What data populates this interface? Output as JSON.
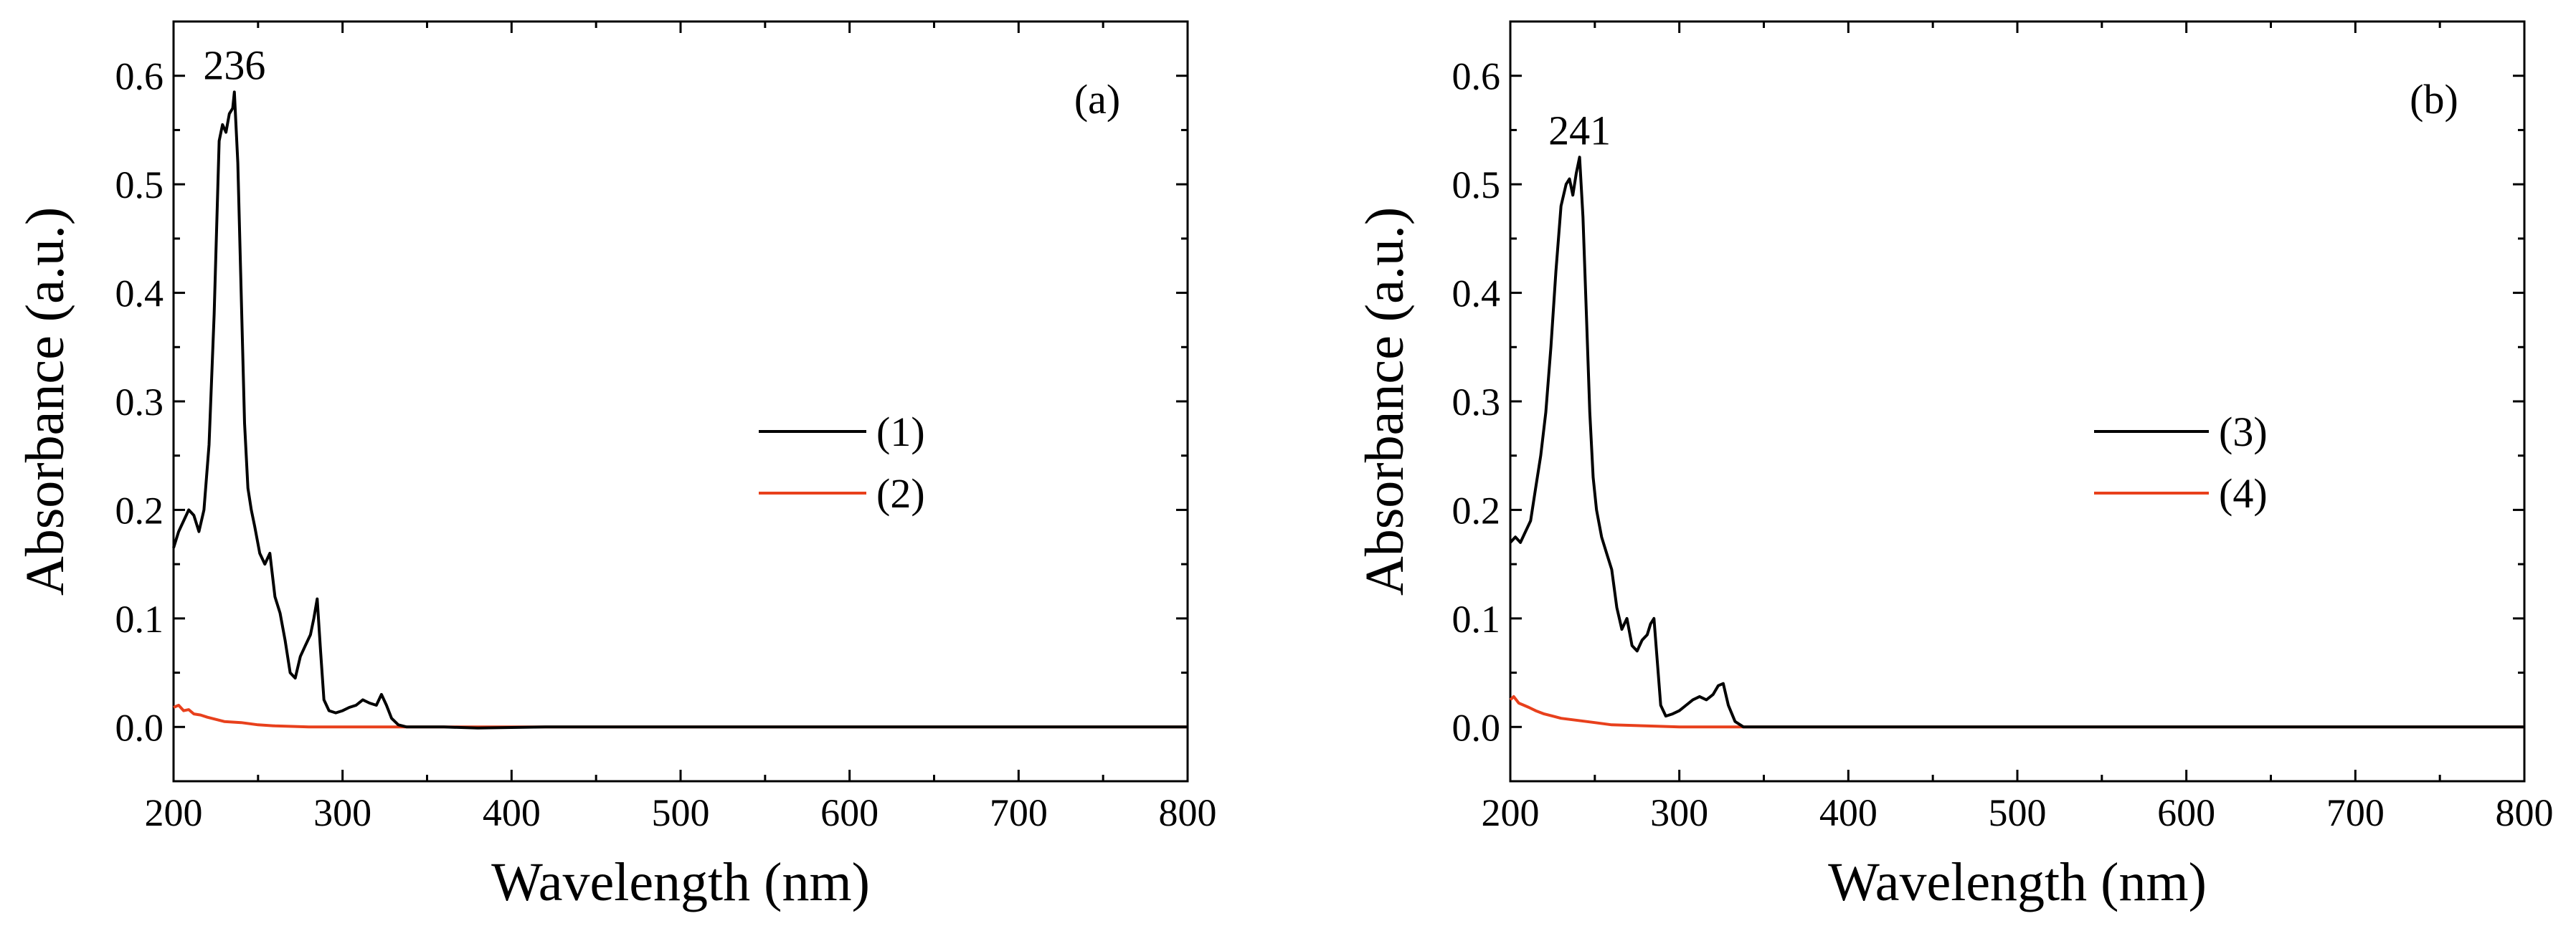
{
  "chart_data": [
    {
      "type": "line",
      "panel_label": "(a)",
      "xlabel": "Wavelength (nm)",
      "ylabel": "Absorbance (a.u.)",
      "xlim": [
        200,
        800
      ],
      "ylim": [
        -0.05,
        0.65
      ],
      "xticks": [
        200,
        300,
        400,
        500,
        600,
        700,
        800
      ],
      "xtick_labels": [
        "200",
        "300",
        "400",
        "500",
        "600",
        "700",
        "800"
      ],
      "yticks": [
        0.0,
        0.1,
        0.2,
        0.3,
        0.4,
        0.5,
        0.6
      ],
      "ytick_labels": [
        "0.0",
        "0.1",
        "0.2",
        "0.3",
        "0.4",
        "0.5",
        "0.6"
      ],
      "legend_position": "center-right",
      "annotations": [
        {
          "text": "236",
          "x": 236,
          "y": 0.585
        }
      ],
      "series": [
        {
          "name": "(1)",
          "color": "#000000",
          "x": [
            200,
            203,
            206,
            209,
            212,
            215,
            218,
            221,
            224,
            227,
            229,
            231,
            233,
            235,
            236,
            238,
            240,
            242,
            244,
            246,
            248,
            251,
            254,
            257,
            260,
            263,
            266,
            269,
            272,
            275,
            278,
            281,
            283,
            285,
            287,
            289,
            292,
            296,
            300,
            304,
            308,
            312,
            316,
            320,
            323,
            326,
            329,
            333,
            338,
            345,
            360,
            380,
            420,
            500,
            600,
            700,
            800
          ],
          "values": [
            0.165,
            0.18,
            0.19,
            0.2,
            0.195,
            0.18,
            0.2,
            0.26,
            0.38,
            0.54,
            0.555,
            0.548,
            0.565,
            0.57,
            0.585,
            0.52,
            0.4,
            0.28,
            0.22,
            0.2,
            0.185,
            0.16,
            0.15,
            0.16,
            0.12,
            0.105,
            0.08,
            0.05,
            0.045,
            0.065,
            0.075,
            0.085,
            0.1,
            0.118,
            0.07,
            0.025,
            0.015,
            0.013,
            0.015,
            0.018,
            0.02,
            0.025,
            0.022,
            0.02,
            0.03,
            0.02,
            0.008,
            0.002,
            0.0,
            0.0,
            0.0,
            -0.001,
            0.0,
            0.0,
            0.0,
            0.0,
            0.0
          ]
        },
        {
          "name": "(2)",
          "color": "#e8401c",
          "x": [
            200,
            203,
            206,
            209,
            212,
            216,
            220,
            225,
            230,
            240,
            250,
            260,
            280,
            300,
            350,
            400,
            500,
            600,
            700,
            800
          ],
          "values": [
            0.018,
            0.02,
            0.015,
            0.016,
            0.012,
            0.011,
            0.009,
            0.007,
            0.005,
            0.004,
            0.002,
            0.001,
            0.0,
            0.0,
            0.0,
            0.0,
            0.0,
            0.0,
            0.0,
            0.0
          ]
        }
      ]
    },
    {
      "type": "line",
      "panel_label": "(b)",
      "xlabel": "Wavelength (nm)",
      "ylabel": "Absorbance (a.u.)",
      "xlim": [
        200,
        800
      ],
      "ylim": [
        -0.05,
        0.65
      ],
      "xticks": [
        200,
        300,
        400,
        500,
        600,
        700,
        800
      ],
      "xtick_labels": [
        "200",
        "300",
        "400",
        "500",
        "600",
        "700",
        "800"
      ],
      "yticks": [
        0.0,
        0.1,
        0.2,
        0.3,
        0.4,
        0.5,
        0.6
      ],
      "ytick_labels": [
        "0.0",
        "0.1",
        "0.2",
        "0.3",
        "0.4",
        "0.5",
        "0.6"
      ],
      "legend_position": "center-right",
      "annotations": [
        {
          "text": "241",
          "x": 241,
          "y": 0.525
        }
      ],
      "series": [
        {
          "name": "(3)",
          "color": "#000000",
          "x": [
            200,
            203,
            206,
            209,
            212,
            215,
            218,
            221,
            224,
            227,
            230,
            233,
            235,
            237,
            239,
            241,
            243,
            245,
            247,
            249,
            251,
            254,
            257,
            260,
            263,
            266,
            269,
            272,
            275,
            278,
            281,
            283,
            285,
            287,
            289,
            292,
            296,
            300,
            304,
            308,
            312,
            316,
            320,
            323,
            326,
            329,
            333,
            338,
            345,
            360,
            380,
            420,
            500,
            600,
            700,
            800
          ],
          "values": [
            0.17,
            0.175,
            0.17,
            0.18,
            0.19,
            0.22,
            0.25,
            0.29,
            0.35,
            0.42,
            0.48,
            0.5,
            0.505,
            0.49,
            0.51,
            0.525,
            0.47,
            0.38,
            0.29,
            0.23,
            0.2,
            0.175,
            0.16,
            0.145,
            0.11,
            0.09,
            0.1,
            0.075,
            0.07,
            0.08,
            0.085,
            0.095,
            0.1,
            0.06,
            0.02,
            0.01,
            0.012,
            0.015,
            0.02,
            0.025,
            0.028,
            0.025,
            0.03,
            0.038,
            0.04,
            0.02,
            0.005,
            0.0,
            0.0,
            0.0,
            0.0,
            0.0,
            0.0,
            0.0,
            0.0,
            0.0
          ]
        },
        {
          "name": "(4)",
          "color": "#e8401c",
          "x": [
            200,
            202,
            205,
            208,
            211,
            215,
            220,
            225,
            230,
            240,
            250,
            260,
            280,
            300,
            350,
            400,
            500,
            600,
            700,
            800
          ],
          "values": [
            0.025,
            0.028,
            0.022,
            0.02,
            0.018,
            0.015,
            0.012,
            0.01,
            0.008,
            0.006,
            0.004,
            0.002,
            0.001,
            0.0,
            0.0,
            0.0,
            0.0,
            0.0,
            0.0,
            0.0
          ]
        }
      ]
    }
  ]
}
